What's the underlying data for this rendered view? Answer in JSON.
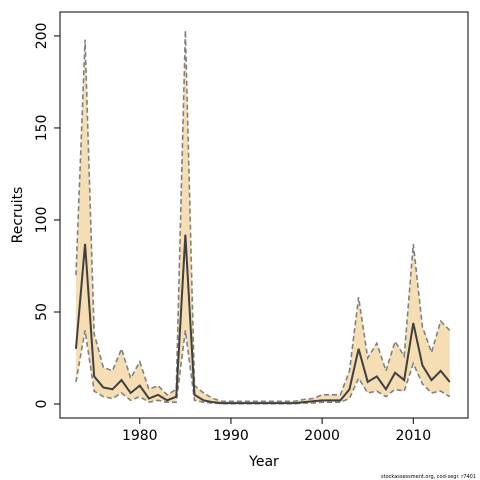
{
  "chart_data": {
    "type": "line",
    "xlabel": "Year",
    "ylabel": "Recruits",
    "footnote": "stockassessment.org, cod-segr. r7401",
    "x": [
      1973,
      1974,
      1975,
      1976,
      1977,
      1978,
      1979,
      1980,
      1981,
      1982,
      1983,
      1984,
      1985,
      1986,
      1987,
      1988,
      1989,
      1990,
      1991,
      1992,
      1993,
      1994,
      1995,
      1996,
      1997,
      1998,
      1999,
      2000,
      2001,
      2002,
      2003,
      2004,
      2005,
      2006,
      2007,
      2008,
      2009,
      2010,
      2011,
      2012,
      2013,
      2014
    ],
    "values": [
      30,
      87,
      15,
      9,
      8,
      13,
      6,
      10,
      3,
      5,
      2,
      4,
      92,
      5,
      2,
      1,
      0.5,
      0.5,
      0.5,
      0.5,
      0.5,
      0.5,
      0.5,
      0.5,
      0.5,
      1,
      1.5,
      2,
      2,
      2,
      8,
      30,
      12,
      15,
      8,
      17,
      13,
      44,
      21,
      13,
      18,
      12
    ],
    "lower": [
      12,
      40,
      7,
      4,
      3,
      6,
      2,
      4,
      1,
      2,
      1,
      1,
      40,
      2,
      1,
      0.5,
      0.2,
      0.2,
      0.2,
      0.2,
      0.2,
      0.2,
      0.2,
      0.2,
      0.2,
      0.5,
      0.5,
      1,
      1,
      1,
      3,
      14,
      6,
      7,
      4,
      8,
      7,
      22,
      11,
      6,
      7,
      4
    ],
    "upper": [
      70,
      198,
      38,
      20,
      18,
      30,
      14,
      23,
      8,
      10,
      5,
      8,
      203,
      10,
      6,
      3,
      1.5,
      1.5,
      1.5,
      1.5,
      1.5,
      1.5,
      1.5,
      1.5,
      1.5,
      2.5,
      3,
      5,
      5,
      5,
      18,
      58,
      25,
      33,
      18,
      34,
      26,
      87,
      42,
      28,
      45,
      40
    ],
    "color": "#404040",
    "band_color": "#f5deb3",
    "bound_color": "#808080",
    "xlim": [
      1971.25,
      2016
    ],
    "xticks": [
      1980,
      1990,
      2000,
      2010
    ],
    "ylim": [
      -7.6,
      213
    ],
    "yticks": [
      0,
      50,
      100,
      150,
      200
    ]
  }
}
